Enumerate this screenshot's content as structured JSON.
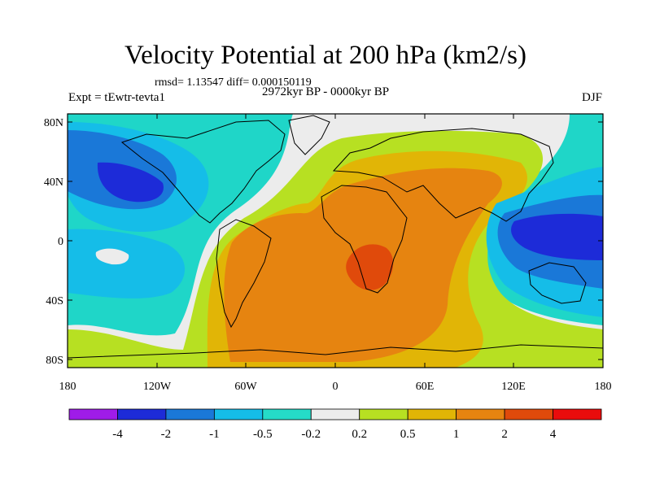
{
  "title": "Velocity Potential at 200 hPa (km2/s)",
  "stats_line": "rmsd= 1.13547 diff= 0.000150119",
  "experiment_label": "Expt = tEwtr-tevta1",
  "period_label": "2972kyr BP - 0000kyr BP",
  "season_label": "DJF",
  "y_ticks": [
    "80N",
    "40N",
    "0",
    "40S",
    "80S"
  ],
  "x_ticks": [
    "180",
    "120W",
    "60W",
    "0",
    "60E",
    "120E",
    "180"
  ],
  "colorbar": {
    "labels": [
      "-4",
      "-2",
      "-1",
      "-0.5",
      "-0.2",
      "0.2",
      "0.5",
      "1",
      "2",
      "4"
    ],
    "colors": [
      "#9f1ce8",
      "#1d2bd8",
      "#1a78d8",
      "#15bde8",
      "#25dcc8",
      "#ececec",
      "#b7e022",
      "#e1b506",
      "#e68410",
      "#e04a0b",
      "#e90c0c"
    ]
  },
  "field_colors": {
    "ocean_bg": "#1fd6c8",
    "blue_deep": "#1d2bd8",
    "blue_mid": "#1a78d8",
    "cyan": "#15bde8",
    "light": "#ececec",
    "yellow_green": "#b7e022",
    "gold": "#e1b506",
    "orange": "#e68410",
    "red_orange": "#e04a0b"
  }
}
